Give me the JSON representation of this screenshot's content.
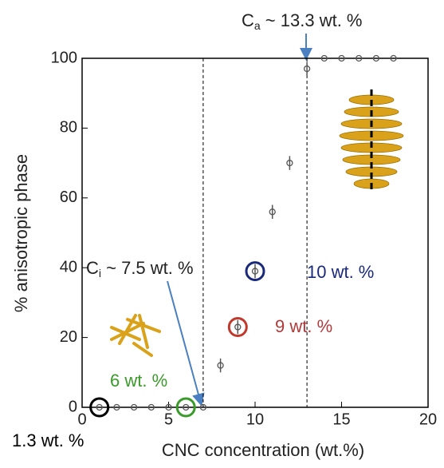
{
  "chart_data": {
    "type": "scatter",
    "x_label": "CNC concentration (wt.%)",
    "y_label": "% anisotropic phase",
    "x": [
      1,
      2,
      3,
      4,
      5,
      6,
      7,
      8,
      9,
      10,
      11,
      12,
      13,
      14,
      15,
      16,
      17,
      18
    ],
    "values": [
      0,
      0,
      0,
      0,
      0,
      0,
      0,
      12,
      23,
      39,
      56,
      70,
      97,
      100,
      100,
      100,
      100,
      100
    ],
    "errors": [
      0,
      0,
      0,
      0,
      0,
      0,
      0,
      2,
      2,
      2,
      2,
      2,
      2,
      0,
      0,
      0,
      0,
      0
    ],
    "color": "#555555",
    "xlim": [
      0,
      20
    ],
    "xticks": [
      0,
      5,
      10,
      15,
      20
    ],
    "ylim": [
      0,
      100
    ],
    "yticks": [
      0,
      20,
      40,
      60,
      80,
      100
    ],
    "vlines": [
      7,
      13
    ],
    "highlights": [
      {
        "x": 1,
        "y": 0,
        "color": "#000000"
      },
      {
        "x": 6,
        "y": 0,
        "color": "#3a9a2a"
      },
      {
        "x": 9,
        "y": 23,
        "color": "#c0392b"
      },
      {
        "x": 10,
        "y": 39,
        "color": "#1a2a7a"
      }
    ],
    "annotations": [
      {
        "text": "1.3 wt. %",
        "color": "#000000"
      },
      {
        "text": "6 wt. %",
        "color": "#3a9a2a"
      },
      {
        "text": "9 wt. %",
        "color": "#b03a3a"
      },
      {
        "text": "10 wt. %",
        "color": "#1a2a7a"
      }
    ],
    "ca_label": {
      "main": "C",
      "sub": "a",
      "rest": " ~ 13.3 wt. %"
    },
    "ci_label": {
      "main": "C",
      "sub": "i",
      "rest": " ~ 7.5 wt. %"
    }
  }
}
